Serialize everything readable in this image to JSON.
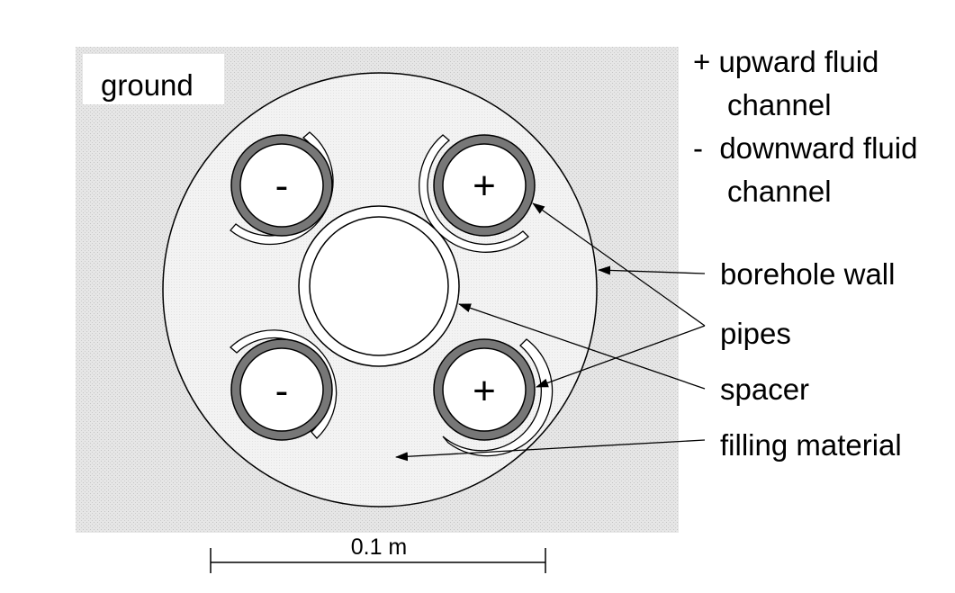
{
  "labels": {
    "ground": "ground",
    "legend_plus_line1": "+ upward fluid",
    "legend_plus_line2": "channel",
    "legend_minus_line1": "-  downward fluid",
    "legend_minus_line2": "channel",
    "borehole_wall": "borehole wall",
    "pipes": "pipes",
    "spacer": "spacer",
    "filling_material": "filling material",
    "scale": "0.1 m"
  },
  "pipe_signs": {
    "top_left": "-",
    "top_right": "+",
    "bottom_left": "-",
    "bottom_right": "+"
  },
  "colors": {
    "ground_fill": "#e3e3e3",
    "borehole_fill": "#f2f2f2",
    "pipe_wall": "#777777",
    "outline": "#000000"
  }
}
